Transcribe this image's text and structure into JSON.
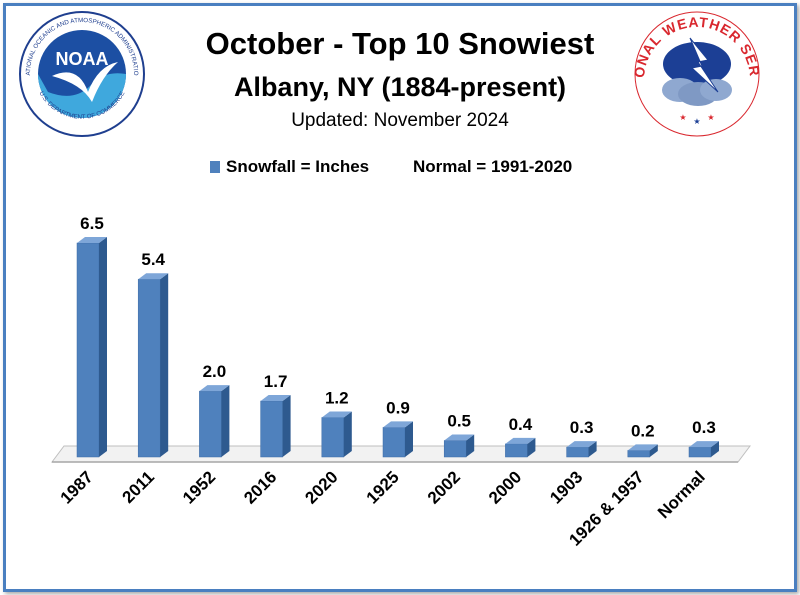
{
  "header": {
    "title": "October - Top 10 Snowiest",
    "subtitle": "Albany, NY (1884-present)",
    "updated": "Updated: November 2024"
  },
  "legend": {
    "series_label": "Snowfall = Inches",
    "normal_label": "Normal = 1991-2020"
  },
  "logos": {
    "noaa_text": "NOAA",
    "noaa_ring_top": "NATIONAL OCEANIC AND ATMOSPHERIC ADMINISTRATION",
    "noaa_ring_bottom": "U.S. DEPARTMENT OF COMMERCE",
    "nws_ring": "NATIONAL WEATHER SERVICE"
  },
  "colors": {
    "bar_front": "#4f81bd",
    "bar_top": "#7ea6d8",
    "bar_side": "#2e5a8f",
    "frame": "#4a7fc0"
  },
  "chart_data": {
    "type": "bar",
    "title": "October - Top 10 Snowiest",
    "subtitle": "Albany, NY (1884-present)",
    "categories": [
      "1987",
      "2011",
      "1952",
      "2016",
      "2020",
      "1925",
      "2002",
      "2000",
      "1903",
      "1926 & 1957",
      "Normal"
    ],
    "series": [
      {
        "name": "Snowfall = Inches",
        "values": [
          6.5,
          5.4,
          2.0,
          1.7,
          1.2,
          0.9,
          0.5,
          0.4,
          0.3,
          0.2,
          0.3
        ],
        "labels": [
          "6.5",
          "5.4",
          "2.0",
          "1.7",
          "1.2",
          "0.9",
          "0.5",
          "0.4",
          "0.3",
          "0.2",
          "0.3"
        ]
      }
    ],
    "ylim": [
      0,
      6.5
    ],
    "grid": false,
    "legend_position": "top"
  }
}
